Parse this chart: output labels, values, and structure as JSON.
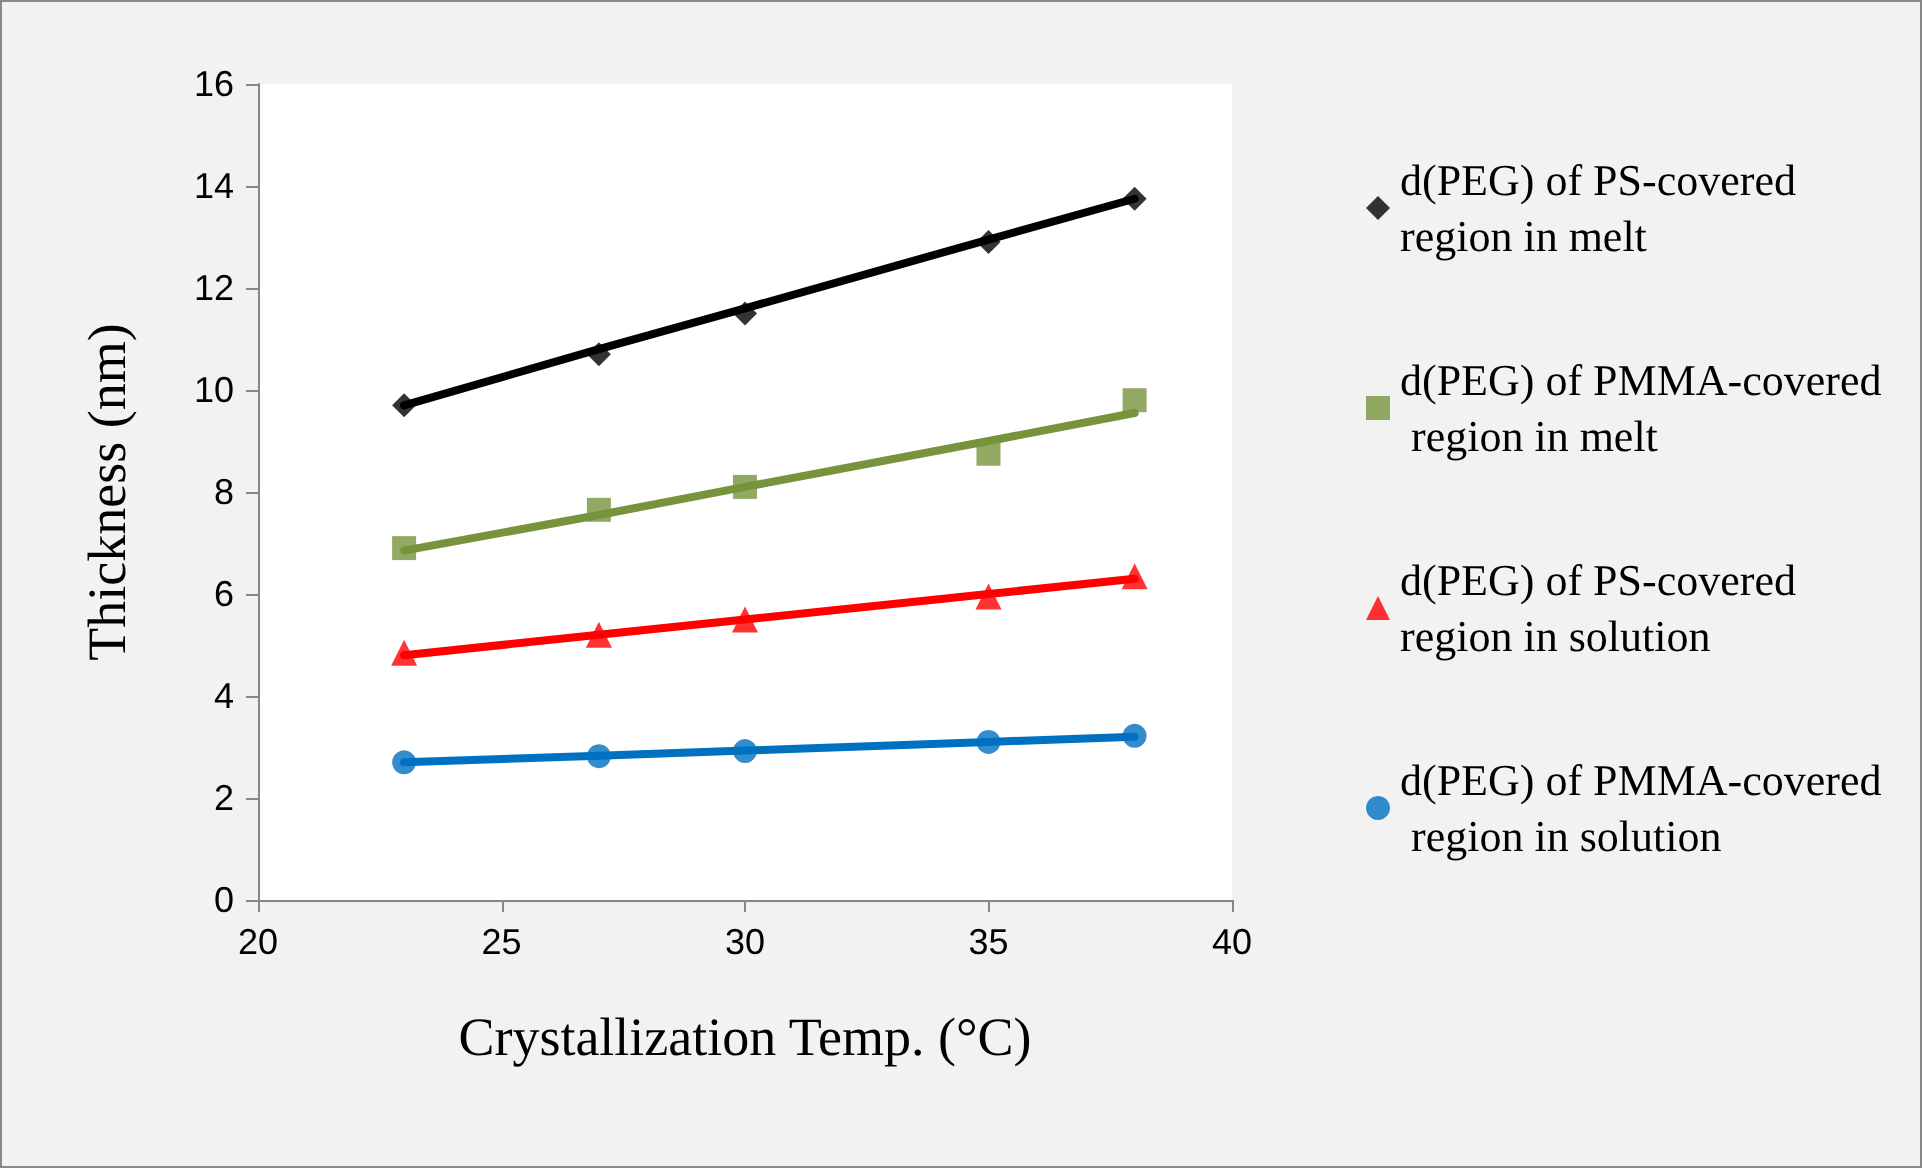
{
  "chart_data": {
    "type": "scatter",
    "xlabel": "Crystallization Temp. (°C)",
    "ylabel": "Thickness (nm)",
    "x": [
      23,
      27,
      30,
      35,
      38
    ],
    "xlim": [
      20,
      40
    ],
    "xticks": [
      20,
      25,
      30,
      35,
      40
    ],
    "ylim": [
      0,
      16
    ],
    "yticks": [
      0,
      2,
      4,
      6,
      8,
      10,
      12,
      14,
      16
    ],
    "grid": false,
    "legend": "right",
    "series": [
      {
        "name": "d(PEG) of PS-covered region in melt",
        "color": "#000000",
        "marker": "diamond",
        "values": [
          9.7,
          10.7,
          11.5,
          12.9,
          13.75
        ]
      },
      {
        "name": "d(PEG) of PMMA-covered region in melt",
        "color": "#77933c",
        "marker": "square",
        "values": [
          6.9,
          7.65,
          8.1,
          8.75,
          9.8
        ]
      },
      {
        "name": "d(PEG) of PS-covered region in solution",
        "color": "#ff0000",
        "marker": "triangle",
        "values": [
          4.85,
          5.2,
          5.5,
          5.95,
          6.35
        ]
      },
      {
        "name": "d(PEG) of PMMA-covered region in solution",
        "color": "#0070c0",
        "marker": "circle",
        "values": [
          2.7,
          2.82,
          2.92,
          3.1,
          3.22
        ]
      },
      {
        "type": "line",
        "color": "#000000",
        "values": [
          9.7,
          10.8,
          11.6,
          12.95,
          13.75
        ]
      },
      {
        "type": "line",
        "color": "#77933c",
        "values": [
          6.85,
          7.55,
          8.1,
          9.0,
          9.55
        ]
      },
      {
        "type": "line",
        "color": "#ff0000",
        "values": [
          4.8,
          5.2,
          5.5,
          6.0,
          6.3
        ]
      },
      {
        "type": "line",
        "color": "#0070c0",
        "values": [
          2.7,
          2.83,
          2.93,
          3.1,
          3.2
        ]
      }
    ]
  }
}
